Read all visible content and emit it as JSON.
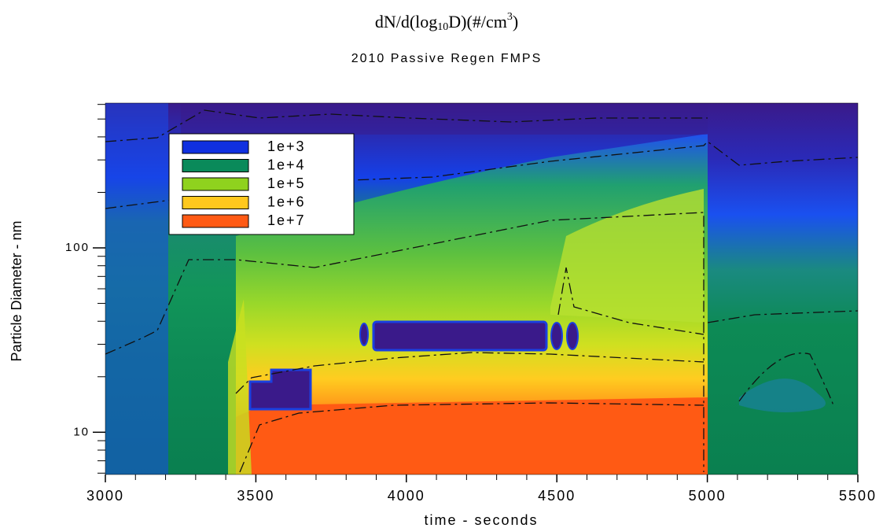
{
  "chart_data": {
    "type": "contour",
    "title_parts": [
      "dN/d(log",
      "10",
      "D)(#/cm",
      "3",
      ")"
    ],
    "subtitle": "2010 Passive Regen FMPS",
    "x_label": "time - seconds",
    "y_label": "Particle Diameter - nm",
    "xlim": [
      3000,
      5500
    ],
    "xticks": [
      3000,
      3500,
      4000,
      4500,
      5000,
      5500
    ],
    "xminorticks": [
      3100,
      3200,
      3300,
      3400,
      3600,
      3700,
      3800,
      3900,
      4100,
      4200,
      4300,
      4400,
      4600,
      4700,
      4800,
      4900,
      5100,
      5200,
      5300,
      5400
    ],
    "ylim": [
      5.9,
      610
    ],
    "log_y": true,
    "yticks": [
      10,
      100
    ],
    "yminorticks": [
      6,
      7,
      8,
      9,
      20,
      30,
      40,
      50,
      60,
      70,
      80,
      90,
      200,
      300,
      400,
      500,
      600
    ],
    "levels": [
      {
        "value": 1000,
        "label": "1e+3"
      },
      {
        "value": 10000,
        "label": "1e+4"
      },
      {
        "value": 100000,
        "label": "1e+5"
      },
      {
        "value": 1000000,
        "label": "1e+6"
      },
      {
        "value": 10000000,
        "label": "1e+7"
      }
    ],
    "level_colors": [
      "#1030e0",
      "#0a8a5a",
      "#8fd21e",
      "#ffc81e",
      "#ff5a14"
    ]
  }
}
